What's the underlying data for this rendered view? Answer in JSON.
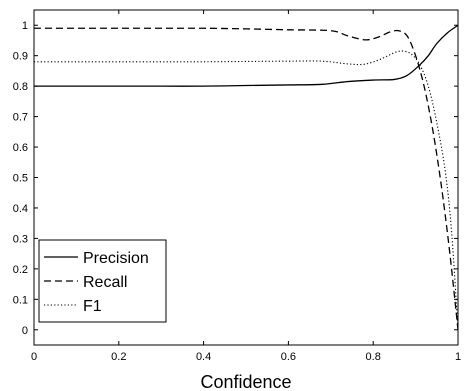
{
  "chart_data": {
    "type": "line",
    "title": "",
    "xlabel": "Confidence",
    "ylabel": "",
    "xlim": [
      0,
      1
    ],
    "ylim": [
      -0.05,
      1.05
    ],
    "xticks": [
      0,
      0.2,
      0.4,
      0.6,
      0.8,
      1
    ],
    "xtick_labels": [
      "0",
      "0.2",
      "0.4",
      "0.6",
      "0.8",
      "1"
    ],
    "yticks": [
      0,
      0.1,
      0.2,
      0.3,
      0.4,
      0.5,
      0.6,
      0.7,
      0.8,
      0.9,
      1
    ],
    "ytick_labels": [
      "0",
      "0.1",
      "0.2",
      "0.3",
      "0.4",
      "0.5",
      "0.6",
      "0.7",
      "0.8",
      "0.9",
      "1"
    ],
    "grid": false,
    "legend_position": "bottom-left",
    "series": [
      {
        "name": "Precision",
        "style": "solid",
        "color": "#000000",
        "points": [
          [
            0,
            0.8
          ],
          [
            0.1,
            0.8
          ],
          [
            0.2,
            0.8
          ],
          [
            0.3,
            0.8
          ],
          [
            0.4,
            0.8
          ],
          [
            0.5,
            0.802
          ],
          [
            0.6,
            0.804
          ],
          [
            0.68,
            0.806
          ],
          [
            0.74,
            0.815
          ],
          [
            0.8,
            0.82
          ],
          [
            0.85,
            0.822
          ],
          [
            0.88,
            0.835
          ],
          [
            0.91,
            0.87
          ],
          [
            0.93,
            0.9
          ],
          [
            0.95,
            0.94
          ],
          [
            0.975,
            0.975
          ],
          [
            1,
            1.0
          ]
        ]
      },
      {
        "name": "Recall",
        "style": "dashed",
        "color": "#000000",
        "points": [
          [
            0,
            0.99
          ],
          [
            0.1,
            0.99
          ],
          [
            0.2,
            0.99
          ],
          [
            0.3,
            0.99
          ],
          [
            0.4,
            0.99
          ],
          [
            0.5,
            0.988
          ],
          [
            0.6,
            0.985
          ],
          [
            0.7,
            0.982
          ],
          [
            0.74,
            0.965
          ],
          [
            0.78,
            0.952
          ],
          [
            0.81,
            0.96
          ],
          [
            0.84,
            0.978
          ],
          [
            0.86,
            0.982
          ],
          [
            0.88,
            0.965
          ],
          [
            0.9,
            0.9
          ],
          [
            0.92,
            0.8
          ],
          [
            0.94,
            0.66
          ],
          [
            0.96,
            0.48
          ],
          [
            0.98,
            0.26
          ],
          [
            1,
            0.0
          ]
        ]
      },
      {
        "name": "F1",
        "style": "dotted",
        "color": "#000000",
        "points": [
          [
            0,
            0.88
          ],
          [
            0.1,
            0.88
          ],
          [
            0.2,
            0.88
          ],
          [
            0.3,
            0.88
          ],
          [
            0.4,
            0.88
          ],
          [
            0.5,
            0.881
          ],
          [
            0.6,
            0.882
          ],
          [
            0.68,
            0.882
          ],
          [
            0.74,
            0.873
          ],
          [
            0.78,
            0.872
          ],
          [
            0.82,
            0.89
          ],
          [
            0.85,
            0.91
          ],
          [
            0.87,
            0.915
          ],
          [
            0.89,
            0.905
          ],
          [
            0.91,
            0.87
          ],
          [
            0.93,
            0.8
          ],
          [
            0.95,
            0.68
          ],
          [
            0.97,
            0.52
          ],
          [
            0.985,
            0.32
          ],
          [
            1,
            0.0
          ]
        ]
      }
    ]
  }
}
